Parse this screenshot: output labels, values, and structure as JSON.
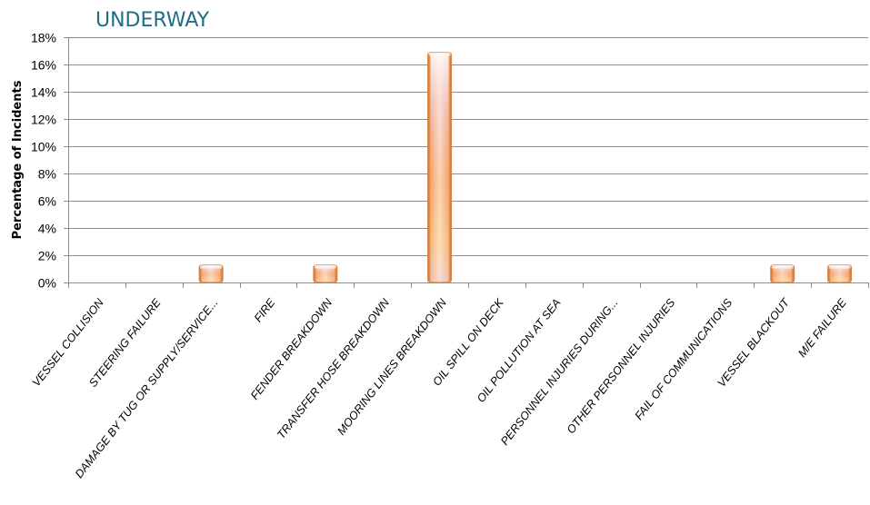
{
  "chart_data": {
    "type": "bar",
    "title": "UNDERWAY",
    "xlabel": "",
    "ylabel": "Percentage of Incidents",
    "ylim": [
      0,
      18
    ],
    "ytick_step": 2,
    "ytick_suffix": "%",
    "grid": true,
    "legend": "none",
    "categories": [
      "VESSEL COLLISION",
      "STEERING FAILURE",
      "DAMAGE BY TUG OR SUPPLY/SERVICE...",
      "FIRE",
      "FENDER BREAKDOWN",
      "TRANSFER HOSE BREAKDOWN",
      "MOORING LINES BREAKDOWN",
      "OIL SPILL ON DECK",
      "OIL POLLUTION AT SEA",
      "PERSONNEL INJURIES DURING...",
      "OTHER PERSONNEL INJURIES",
      "FAIL OF COMMUNICATIONS",
      "VESSEL BLACKOUT",
      "M/E FAILURE"
    ],
    "values": [
      0,
      0,
      1.3,
      0,
      1.3,
      0,
      16.9,
      0,
      0,
      0,
      0,
      0,
      1.3,
      1.3
    ],
    "colors": {
      "bar_edge": "#e07b3c",
      "bar_mid": "#f6b98a",
      "bar_light": "#fde9d6",
      "title": "#1f6d86",
      "grid": "#8c8c8c"
    }
  }
}
